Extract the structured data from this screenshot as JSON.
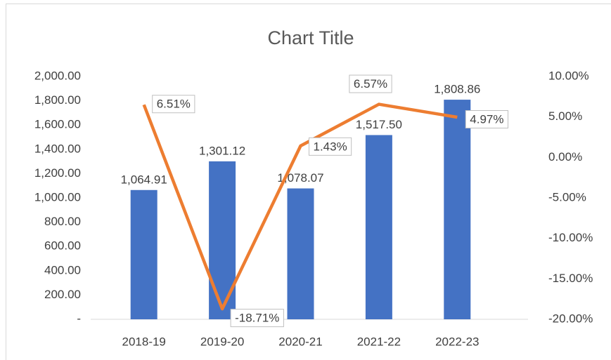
{
  "chart_data": {
    "type": "bar_line",
    "title": "Chart Title",
    "categories": [
      "2018-19",
      "2019-20",
      "2020-21",
      "2021-22",
      "2022-23"
    ],
    "series": [
      {
        "type": "bar",
        "color": "#4472c4",
        "values": [
          1064.91,
          1301.12,
          1078.07,
          1517.5,
          1808.86
        ],
        "value_labels": [
          "1,064.91",
          "1,301.12",
          "1,078.07",
          "1,517.50",
          "1,808.86"
        ]
      },
      {
        "type": "line",
        "axis": "y2",
        "color": "#ed7d31",
        "values": [
          6.51,
          -18.71,
          1.43,
          6.57,
          4.97
        ],
        "value_labels": [
          "6.51%",
          "-18.71%",
          "1.43%",
          "6.57%",
          "4.97%"
        ]
      }
    ],
    "ylim": [
      0,
      2000
    ],
    "yticks": [
      {
        "value": 0,
        "label": "-"
      },
      {
        "value": 200,
        "label": "200.00"
      },
      {
        "value": 400,
        "label": "400.00"
      },
      {
        "value": 600,
        "label": "600.00"
      },
      {
        "value": 800,
        "label": "800.00"
      },
      {
        "value": 1000,
        "label": "1,000.00"
      },
      {
        "value": 1200,
        "label": "1,200.00"
      },
      {
        "value": 1400,
        "label": "1,400.00"
      },
      {
        "value": 1600,
        "label": "1,600.00"
      },
      {
        "value": 1800,
        "label": "1,800.00"
      },
      {
        "value": 2000,
        "label": "2,000.00"
      }
    ],
    "y2lim": [
      -20,
      10
    ],
    "y2ticks": [
      {
        "value": -20,
        "label": "-20.00%"
      },
      {
        "value": -15,
        "label": "-15.00%"
      },
      {
        "value": -10,
        "label": "-10.00%"
      },
      {
        "value": -5,
        "label": "-5.00%"
      },
      {
        "value": 0,
        "label": "0.00%"
      },
      {
        "value": 5,
        "label": "5.00%"
      },
      {
        "value": 10,
        "label": "10.00%"
      }
    ],
    "grid": false
  }
}
